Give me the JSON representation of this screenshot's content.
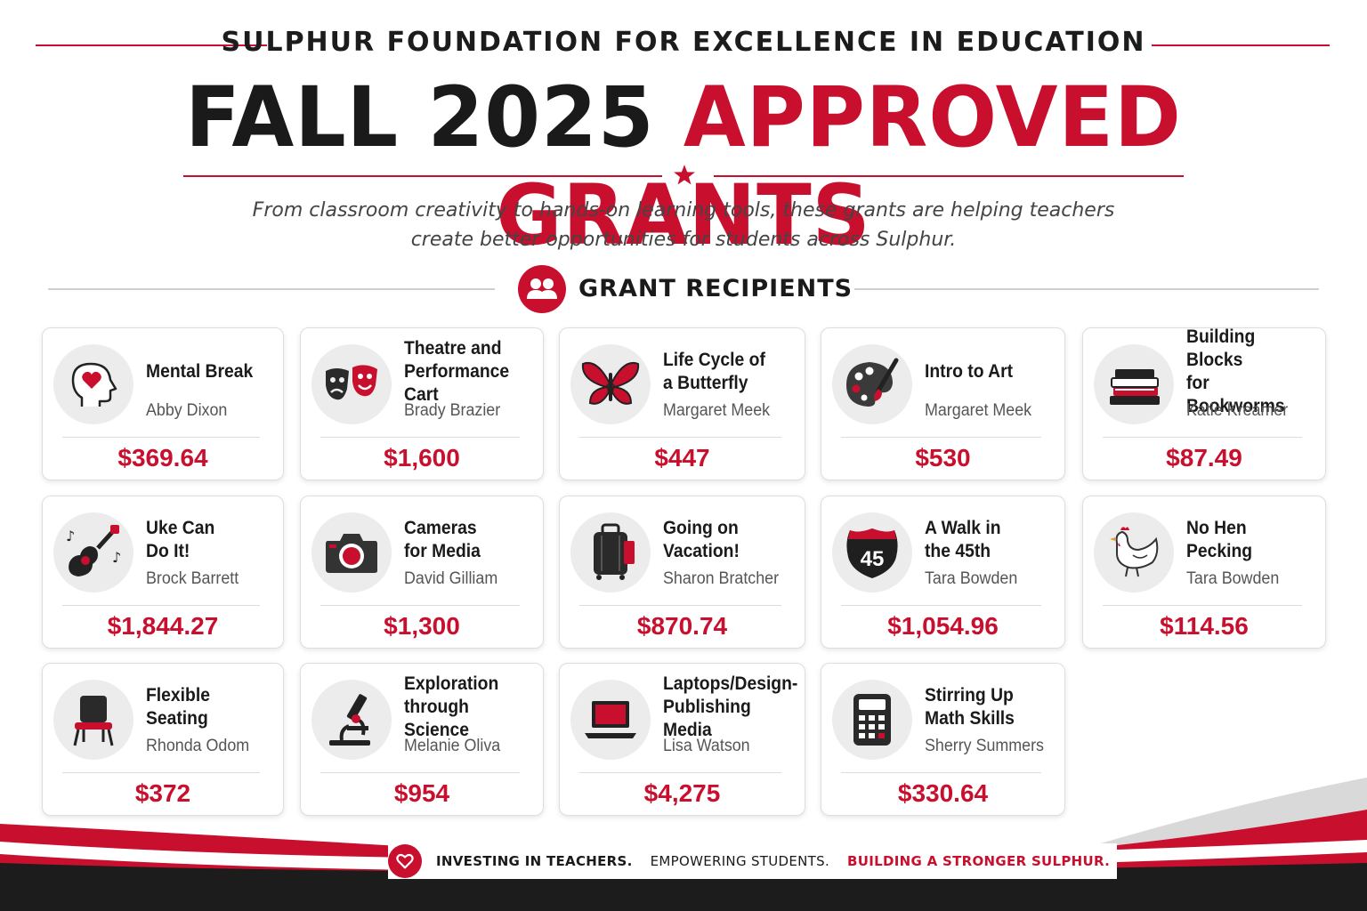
{
  "header": {
    "org": "SULPHUR FOUNDATION FOR EXCELLENCE IN EDUCATION",
    "title_dark": "FALL 2025",
    "title_red": "APPROVED GRANTS",
    "subtitle_line1": "From classroom creativity to hands-on learning tools, these grants are helping teachers",
    "subtitle_line2": "create better opportunities for students across Sulphur."
  },
  "section": {
    "title": "GRANT RECIPIENTS"
  },
  "grants": [
    {
      "name": "Mental Break",
      "teacher": "Abby Dixon",
      "amount": "$369.64",
      "icon": "head-heart-icon"
    },
    {
      "name": "Theatre and\nPerformance Cart",
      "teacher": "Brady Brazier",
      "amount": "$1,600",
      "icon": "theatre-masks-icon"
    },
    {
      "name": "Life Cycle of\na Butterfly",
      "teacher": "Margaret Meek",
      "amount": "$447",
      "icon": "butterfly-icon"
    },
    {
      "name": "Intro to Art",
      "teacher": "Margaret Meek",
      "amount": "$530",
      "icon": "palette-icon"
    },
    {
      "name": "Building Blocks\nfor Bookworms",
      "teacher": "Katie Kreamer",
      "amount": "$87.49",
      "icon": "books-icon"
    },
    {
      "name": "Uke Can\nDo It!",
      "teacher": "Brock Barrett",
      "amount": "$1,844.27",
      "icon": "ukulele-icon"
    },
    {
      "name": "Cameras\nfor Media",
      "teacher": "David Gilliam",
      "amount": "$1,300",
      "icon": "camera-icon"
    },
    {
      "name": "Going on\nVacation!",
      "teacher": "Sharon Bratcher",
      "amount": "$870.74",
      "icon": "suitcase-icon"
    },
    {
      "name": "A Walk in\nthe 45th",
      "teacher": "Tara Bowden",
      "amount": "$1,054.96",
      "icon": "highway-45-icon",
      "icon_text": "45"
    },
    {
      "name": "No Hen\nPecking",
      "teacher": "Tara Bowden",
      "amount": "$114.56",
      "icon": "hen-icon"
    },
    {
      "name": "Flexible\nSeating",
      "teacher": "Rhonda Odom",
      "amount": "$372",
      "icon": "chair-icon"
    },
    {
      "name": "Exploration\nthrough Science",
      "teacher": "Melanie Oliva",
      "amount": "$954",
      "icon": "microscope-icon"
    },
    {
      "name": "Laptops/Design-\nPublishing Media",
      "teacher": "Lisa Watson",
      "amount": "$4,275",
      "icon": "laptop-icon"
    },
    {
      "name": "Stirring Up\nMath Skills",
      "teacher": "Sherry Summers",
      "amount": "$330.64",
      "icon": "calculator-icon"
    }
  ],
  "footer": {
    "tag1": "INVESTING IN TEACHERS.",
    "tag2": "EMPOWERING STUDENTS.",
    "tag3": "BUILDING A STRONGER SULPHUR."
  },
  "colors": {
    "accent": "#c8102e",
    "dark": "#1a1a1a",
    "muted": "#555555"
  }
}
